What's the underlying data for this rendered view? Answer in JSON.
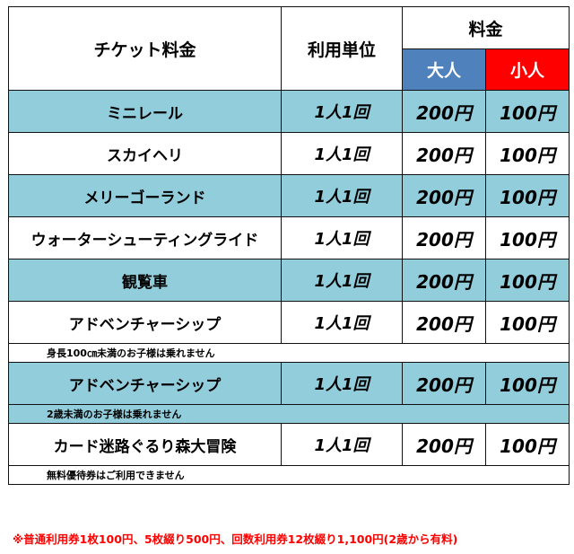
{
  "header": {
    "ticket_label": "チケット料金",
    "unit_label": "利用単位",
    "fee_label": "料金",
    "adult_label": "大人",
    "child_label": "小人"
  },
  "colors": {
    "row_blue": "#92cddc",
    "adult_bg": "#4f81bd",
    "child_bg": "#ff0000",
    "footer_text": "#ff0000"
  },
  "rows": [
    {
      "name": "ミニレール",
      "unit": "1人1回",
      "adult": "200円",
      "child": "100円"
    },
    {
      "name": "スカイヘリ",
      "unit": "1人1回",
      "adult": "200円",
      "child": "100円"
    },
    {
      "name": "メリーゴーランド",
      "unit": "1人1回",
      "adult": "200円",
      "child": "100円"
    },
    {
      "name": "ウォーターシューティングライド",
      "unit": "1人1回",
      "adult": "200円",
      "child": "100円"
    },
    {
      "name": "観覧車",
      "unit": "1人1回",
      "adult": "200円",
      "child": "100円"
    },
    {
      "name": "アドベンチャーシップ",
      "unit": "1人1回",
      "adult": "200円",
      "child": "100円"
    },
    {
      "name": "アドベンチャーシップ",
      "unit": "1人1回",
      "adult": "200円",
      "child": "100円"
    },
    {
      "name": "カード迷路ぐるり森大冒険",
      "unit": "1人1回",
      "adult": "200円",
      "child": "100円"
    }
  ],
  "notes": {
    "height_limit": "身長100㎝未満のお子様は乗れません",
    "age_limit": "2歳未満のお子様は乗れません",
    "no_invite": "無料優待券はご利用できません"
  },
  "footer": "※普通利用券1枚100円、5枚綴り500円、回数利用券12枚綴り1,100円(2歳から有料)"
}
